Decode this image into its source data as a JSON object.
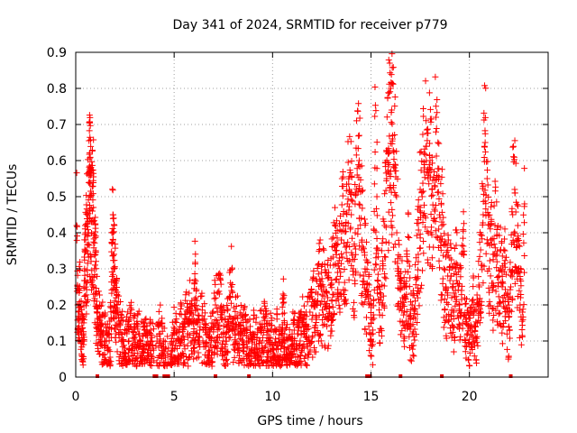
{
  "chart_data": {
    "type": "scatter",
    "title": "Day 341 of 2024, SRMTID for receiver p779",
    "xlabel": "GPS time / hours",
    "ylabel": "SRMTID / TECUs",
    "xlim": [
      0,
      24
    ],
    "ylim": [
      0,
      0.9
    ],
    "x_ticks": [
      0,
      5,
      10,
      15,
      20
    ],
    "x_tick_labels": [
      "0",
      "5",
      "10",
      "15",
      "20"
    ],
    "y_ticks": [
      0,
      0.1,
      0.2,
      0.3,
      0.4,
      0.5,
      0.6,
      0.7,
      0.8,
      0.9
    ],
    "y_tick_labels": [
      "0",
      "0.1",
      "0.2",
      "0.3",
      "0.4",
      "0.5",
      "0.6",
      "0.7",
      "0.8",
      "0.9"
    ],
    "grid": true,
    "marker": "+",
    "color": "#ff0000",
    "data_hours": [
      0,
      22.8
    ],
    "zero_value_times": [
      1.1,
      4.0,
      4.1,
      4.5,
      4.6,
      4.7,
      7.1,
      8.8,
      14.8,
      14.95,
      16.5,
      18.6,
      22.1
    ],
    "series": [
      {
        "name": "p779",
        "points": [
          [
            0.05,
            0.42
          ],
          [
            0.1,
            0.2
          ],
          [
            0.15,
            0.16
          ],
          [
            0.2,
            0.24
          ],
          [
            0.3,
            0.12
          ],
          [
            0.35,
            0.1
          ],
          [
            0.4,
            0.09
          ],
          [
            0.45,
            0.3
          ],
          [
            0.5,
            0.38
          ],
          [
            0.55,
            0.35
          ],
          [
            0.6,
            0.45
          ],
          [
            0.65,
            0.4
          ],
          [
            0.7,
            0.56
          ],
          [
            0.72,
            0.54
          ],
          [
            0.75,
            0.5
          ],
          [
            0.8,
            0.43
          ],
          [
            0.85,
            0.46
          ],
          [
            0.9,
            0.47
          ],
          [
            0.95,
            0.3
          ],
          [
            1.0,
            0.34
          ],
          [
            1.05,
            0.2
          ],
          [
            1.1,
            0.18
          ],
          [
            1.2,
            0.16
          ],
          [
            1.25,
            0.09
          ],
          [
            1.3,
            0.14
          ],
          [
            1.4,
            0.12
          ],
          [
            1.5,
            0.1
          ],
          [
            1.6,
            0.08
          ],
          [
            1.7,
            0.12
          ],
          [
            1.8,
            0.16
          ],
          [
            1.85,
            0.37
          ],
          [
            1.9,
            0.38
          ],
          [
            1.95,
            0.3
          ],
          [
            2.0,
            0.26
          ],
          [
            2.05,
            0.22
          ],
          [
            2.1,
            0.2
          ],
          [
            2.2,
            0.15
          ],
          [
            2.3,
            0.12
          ],
          [
            2.4,
            0.1
          ],
          [
            2.5,
            0.08
          ],
          [
            2.6,
            0.12
          ],
          [
            2.7,
            0.1
          ],
          [
            2.8,
            0.14
          ],
          [
            2.9,
            0.09
          ],
          [
            3.0,
            0.11
          ],
          [
            3.1,
            0.08
          ],
          [
            3.2,
            0.12
          ],
          [
            3.3,
            0.1
          ],
          [
            3.4,
            0.07
          ],
          [
            3.5,
            0.13
          ],
          [
            3.6,
            0.09
          ],
          [
            3.7,
            0.06
          ],
          [
            3.8,
            0.1
          ],
          [
            3.9,
            0.08
          ],
          [
            4.2,
            0.14
          ],
          [
            4.3,
            0.12
          ],
          [
            4.4,
            0.09
          ],
          [
            4.5,
            0.07
          ],
          [
            4.8,
            0.05
          ],
          [
            4.9,
            0.08
          ],
          [
            5.0,
            0.12
          ],
          [
            5.1,
            0.1
          ],
          [
            5.2,
            0.06
          ],
          [
            5.3,
            0.14
          ],
          [
            5.4,
            0.11
          ],
          [
            5.5,
            0.09
          ],
          [
            5.6,
            0.16
          ],
          [
            5.7,
            0.12
          ],
          [
            5.8,
            0.19
          ],
          [
            5.9,
            0.15
          ],
          [
            6.0,
            0.08
          ],
          [
            6.05,
            0.27
          ],
          [
            6.1,
            0.22
          ],
          [
            6.2,
            0.1
          ],
          [
            6.3,
            0.13
          ],
          [
            6.5,
            0.16
          ],
          [
            6.6,
            0.09
          ],
          [
            6.7,
            0.12
          ],
          [
            6.8,
            0.07
          ],
          [
            6.9,
            0.11
          ],
          [
            7.0,
            0.14
          ],
          [
            7.1,
            0.2
          ],
          [
            7.2,
            0.18
          ],
          [
            7.3,
            0.23
          ],
          [
            7.4,
            0.16
          ],
          [
            7.5,
            0.12
          ],
          [
            7.6,
            0.09
          ],
          [
            7.7,
            0.14
          ],
          [
            7.8,
            0.22
          ],
          [
            7.9,
            0.25
          ],
          [
            8.0,
            0.15
          ],
          [
            8.1,
            0.12
          ],
          [
            8.2,
            0.17
          ],
          [
            8.3,
            0.09
          ],
          [
            8.4,
            0.12
          ],
          [
            8.5,
            0.1
          ],
          [
            8.6,
            0.13
          ],
          [
            8.7,
            0.08
          ],
          [
            8.8,
            0.1
          ],
          [
            8.9,
            0.07
          ],
          [
            9.0,
            0.12
          ],
          [
            9.1,
            0.09
          ],
          [
            9.2,
            0.11
          ],
          [
            9.3,
            0.06
          ],
          [
            9.4,
            0.13
          ],
          [
            9.5,
            0.08
          ],
          [
            9.6,
            0.14
          ],
          [
            9.7,
            0.1
          ],
          [
            9.8,
            0.07
          ],
          [
            9.9,
            0.11
          ],
          [
            10.0,
            0.08
          ],
          [
            10.1,
            0.06
          ],
          [
            10.2,
            0.13
          ],
          [
            10.3,
            0.09
          ],
          [
            10.4,
            0.05
          ],
          [
            10.5,
            0.12
          ],
          [
            10.55,
            0.22
          ],
          [
            10.6,
            0.1
          ],
          [
            10.7,
            0.07
          ],
          [
            10.8,
            0.11
          ],
          [
            10.9,
            0.06
          ],
          [
            11.0,
            0.09
          ],
          [
            11.1,
            0.13
          ],
          [
            11.2,
            0.08
          ],
          [
            11.3,
            0.12
          ],
          [
            11.4,
            0.1
          ],
          [
            11.5,
            0.15
          ],
          [
            11.6,
            0.12
          ],
          [
            11.7,
            0.11
          ],
          [
            11.8,
            0.14
          ],
          [
            11.9,
            0.18
          ],
          [
            12.0,
            0.16
          ],
          [
            12.1,
            0.2
          ],
          [
            12.2,
            0.17
          ],
          [
            12.3,
            0.23
          ],
          [
            12.4,
            0.27
          ],
          [
            12.5,
            0.21
          ],
          [
            12.6,
            0.25
          ],
          [
            12.7,
            0.2
          ],
          [
            12.8,
            0.22
          ],
          [
            12.9,
            0.18
          ],
          [
            13.0,
            0.26
          ],
          [
            13.1,
            0.31
          ],
          [
            13.2,
            0.35
          ],
          [
            13.3,
            0.29
          ],
          [
            13.4,
            0.33
          ],
          [
            13.5,
            0.38
          ],
          [
            13.6,
            0.42
          ],
          [
            13.7,
            0.36
          ],
          [
            13.8,
            0.48
          ],
          [
            13.9,
            0.52
          ],
          [
            14.0,
            0.45
          ],
          [
            14.1,
            0.3
          ],
          [
            14.2,
            0.4
          ],
          [
            14.3,
            0.56
          ],
          [
            14.4,
            0.6
          ],
          [
            14.5,
            0.44
          ],
          [
            14.6,
            0.36
          ],
          [
            14.7,
            0.3
          ],
          [
            14.8,
            0.26
          ],
          [
            14.9,
            0.2
          ],
          [
            15.0,
            0.15
          ],
          [
            15.1,
            0.12
          ],
          [
            15.2,
            0.58
          ],
          [
            15.3,
            0.5
          ],
          [
            15.4,
            0.25
          ],
          [
            15.5,
            0.23
          ],
          [
            15.6,
            0.3
          ],
          [
            15.7,
            0.42
          ],
          [
            15.8,
            0.55
          ],
          [
            15.9,
            0.62
          ],
          [
            15.95,
            0.87
          ],
          [
            16.0,
            0.8
          ],
          [
            16.05,
            0.74
          ],
          [
            16.1,
            0.66
          ],
          [
            16.2,
            0.58
          ],
          [
            16.3,
            0.5
          ],
          [
            16.4,
            0.3
          ],
          [
            16.5,
            0.26
          ],
          [
            16.6,
            0.22
          ],
          [
            16.7,
            0.18
          ],
          [
            16.8,
            0.25
          ],
          [
            16.9,
            0.32
          ],
          [
            17.0,
            0.16
          ],
          [
            17.1,
            0.12
          ],
          [
            17.2,
            0.19
          ],
          [
            17.3,
            0.27
          ],
          [
            17.4,
            0.34
          ],
          [
            17.5,
            0.47
          ],
          [
            17.6,
            0.5
          ],
          [
            17.7,
            0.58
          ],
          [
            17.8,
            0.64
          ],
          [
            17.9,
            0.55
          ],
          [
            18.0,
            0.6
          ],
          [
            18.1,
            0.52
          ],
          [
            18.2,
            0.44
          ],
          [
            18.3,
            0.72
          ],
          [
            18.4,
            0.65
          ],
          [
            18.5,
            0.38
          ],
          [
            18.6,
            0.42
          ],
          [
            18.7,
            0.3
          ],
          [
            18.8,
            0.25
          ],
          [
            18.9,
            0.28
          ],
          [
            19.0,
            0.33
          ],
          [
            19.1,
            0.22
          ],
          [
            19.2,
            0.18
          ],
          [
            19.3,
            0.3
          ],
          [
            19.4,
            0.26
          ],
          [
            19.5,
            0.2
          ],
          [
            19.6,
            0.24
          ],
          [
            19.7,
            0.34
          ],
          [
            19.8,
            0.16
          ],
          [
            19.9,
            0.12
          ],
          [
            20.0,
            0.09
          ],
          [
            20.1,
            0.14
          ],
          [
            20.2,
            0.2
          ],
          [
            20.3,
            0.11
          ],
          [
            20.4,
            0.15
          ],
          [
            20.5,
            0.25
          ],
          [
            20.6,
            0.31
          ],
          [
            20.7,
            0.45
          ],
          [
            20.8,
            0.65
          ],
          [
            20.9,
            0.55
          ],
          [
            21.0,
            0.3
          ],
          [
            21.1,
            0.38
          ],
          [
            21.2,
            0.26
          ],
          [
            21.3,
            0.42
          ],
          [
            21.4,
            0.34
          ],
          [
            21.5,
            0.28
          ],
          [
            21.6,
            0.3
          ],
          [
            21.7,
            0.22
          ],
          [
            21.8,
            0.35
          ],
          [
            21.9,
            0.18
          ],
          [
            22.0,
            0.14
          ],
          [
            22.1,
            0.25
          ],
          [
            22.2,
            0.45
          ],
          [
            22.3,
            0.52
          ],
          [
            22.4,
            0.38
          ],
          [
            22.5,
            0.3
          ],
          [
            22.6,
            0.22
          ],
          [
            22.7,
            0.18
          ],
          [
            22.8,
            0.48
          ]
        ]
      }
    ]
  }
}
